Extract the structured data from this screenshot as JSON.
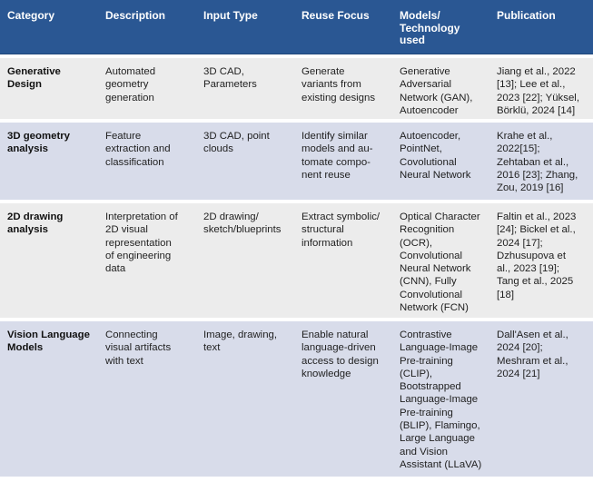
{
  "headers": [
    "Category",
    "Description",
    "Input Type",
    "Reuse Focus",
    "Models/\nTechnology\nused",
    "Publication"
  ],
  "rows": [
    {
      "category": "Generative\nDesign",
      "description": "Automated\ngeometry\ngeneration",
      "input_type": "3D CAD,\nParameters",
      "reuse_focus": "Generate\nvariants from\nexisting designs",
      "models": "Generative\nAdversarial\nNetwork (GAN),\nAutoencoder",
      "publication": "Jiang et al., 2022\n[13]; Lee et al.,\n2023 [22]; Yüksel,\nBörklü, 2024 [14]",
      "shade": "light"
    },
    {
      "category": "3D geometry\nanalysis",
      "description": "Feature\nextraction and\nclassification",
      "input_type": "3D CAD, point\nclouds",
      "reuse_focus": "Identify similar\nmodels and au-\ntomate compo-\nnent reuse",
      "models": "Autoencoder,\nPointNet,\nCovolutional\nNeural Network",
      "publication": "Krahe et al.,\n2022[15];\nZehtaban et al.,\n2016 [23]; Zhang,\nZou, 2019 [16]",
      "shade": "blue"
    },
    {
      "category": "2D drawing\nanalysis",
      "description": "Interpretation of\n2D visual\nrepresentation\nof engineering\ndata",
      "input_type": "2D drawing/\nsketch/blueprints",
      "reuse_focus": "Extract symbolic/\nstructural\ninformation",
      "models": "Optical Character\nRecognition\n(OCR),\nConvolutional\nNeural Network\n(CNN), Fully\nConvolutional\nNetwork (FCN)",
      "publication": "Faltin et al., 2023\n[24]; Bickel et al.,\n2024 [17];\nDzhusupova et\nal., 2023 [19];\nTang et al., 2025\n[18]",
      "shade": "light"
    },
    {
      "category": "Vision Language\nModels",
      "description": "Connecting\nvisual artifacts\nwith text",
      "input_type": "Image, drawing,\ntext",
      "reuse_focus": "Enable natural\nlanguage-driven\naccess to design\nknowledge",
      "models": "Contrastive\nLanguage-Image\nPre-training\n(CLIP),\nBootstrapped\nLanguage-Image\nPre-training\n(BLIP), Flamingo,\nLarge Language\nand Vision\nAssistant (LLaVA)",
      "publication": "Dall'Asen et al.,\n2024 [20];\nMeshram et al.,\n2024 [21]",
      "shade": "blue"
    }
  ]
}
